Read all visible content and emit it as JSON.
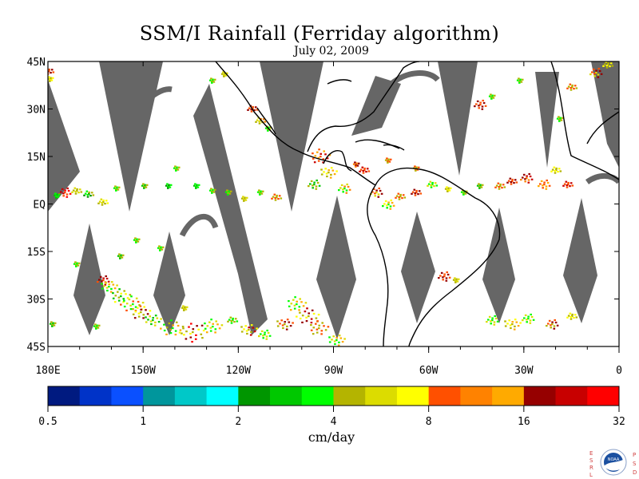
{
  "title": "SSM/I Rainfall (Ferriday algorithm)",
  "subtitle": "July 02, 2009",
  "map": {
    "lat_labels": [
      "45N",
      "30N",
      "15N",
      "EQ",
      "15S",
      "30S",
      "45S"
    ],
    "lon_labels": [
      "180E",
      "150W",
      "120W",
      "90W",
      "60W",
      "30W",
      "0"
    ],
    "lat_range": [
      -45,
      45
    ],
    "lon_range": [
      -180,
      0
    ],
    "no_data_color": "#666666",
    "coast_color": "#000000"
  },
  "colorbar": {
    "title": "cm/day",
    "tick_labels": [
      "0.5",
      "1",
      "2",
      "4",
      "8",
      "16",
      "32"
    ],
    "colors": [
      "#001a80",
      "#0033c8",
      "#0a50ff",
      "#00969c",
      "#00c8c8",
      "#00ffff",
      "#009600",
      "#00c800",
      "#00ff00",
      "#b4b400",
      "#dcdc00",
      "#ffff00",
      "#ff5000",
      "#ff8200",
      "#ffaa00",
      "#960000",
      "#c80000",
      "#ff0000"
    ]
  },
  "logo": {
    "left_letters": [
      "E",
      "S",
      "R",
      "L"
    ],
    "right_letters": [
      "P",
      "S",
      "D"
    ],
    "badge_text": "NOAA",
    "badge_color": "#1a4fa0"
  }
}
